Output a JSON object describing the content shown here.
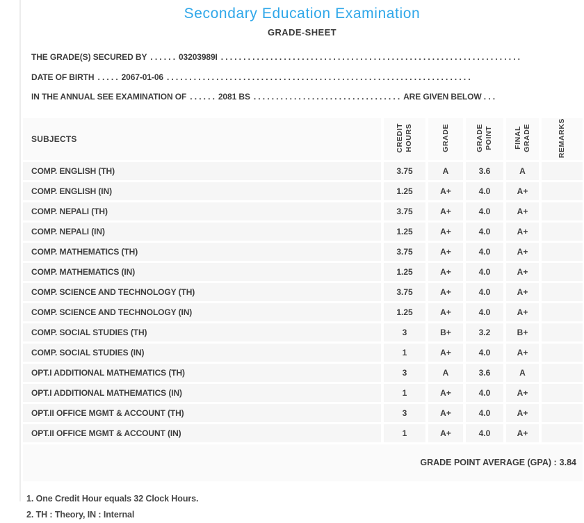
{
  "header": {
    "title": "Secondary Education Examination",
    "subtitle": "GRADE-SHEET"
  },
  "info_lines": [
    {
      "label": "THE GRADE(S) SECURED BY",
      "dots_before": ". . . . . .",
      "value": "03203989I",
      "dots_after": ". . . . . . . . . . . . . . . . . . . . . . . . . . . . . . . . . . . . . . . . . . . . . . . . . . . . . . . . . . . . . . . . . . . .",
      "suffix": ""
    },
    {
      "label": "DATE OF BIRTH",
      "dots_before": ". . . . .",
      "value": "2067-01-06",
      "dots_after": ". . . . . . . . . . . . . . . . . . . . . . . . . . . . . . . . . . . . . . . . . . . . . . . . . . . . . . . . . . . . . . . . . . . .",
      "suffix": ""
    },
    {
      "label": "IN THE ANNUAL SEE EXAMINATION OF",
      "dots_before": ". . . . . .",
      "value": "2081 BS",
      "dots_after": ". . . . . . . . . . . . . . . . . . . . . . . . . . . . . . . . .",
      "suffix": "ARE GIVEN BELOW . . ."
    }
  ],
  "table": {
    "columns": {
      "subjects": "SUBJECTS",
      "credit_hours": "CREDIT\nHOURS",
      "grade": "GRADE",
      "grade_point": "GRADE\nPOINT",
      "final_grade": "FINAL\nGRADE",
      "remarks": "REMARKS"
    },
    "rows": [
      {
        "subject": "COMP. ENGLISH (TH)",
        "credit_hours": "3.75",
        "grade": "A",
        "grade_point": "3.6",
        "final_grade": "A",
        "remarks": ""
      },
      {
        "subject": "COMP. ENGLISH (IN)",
        "credit_hours": "1.25",
        "grade": "A+",
        "grade_point": "4.0",
        "final_grade": "A+",
        "remarks": ""
      },
      {
        "subject": "COMP. NEPALI (TH)",
        "credit_hours": "3.75",
        "grade": "A+",
        "grade_point": "4.0",
        "final_grade": "A+",
        "remarks": ""
      },
      {
        "subject": "COMP. NEPALI (IN)",
        "credit_hours": "1.25",
        "grade": "A+",
        "grade_point": "4.0",
        "final_grade": "A+",
        "remarks": ""
      },
      {
        "subject": "COMP. MATHEMATICS (TH)",
        "credit_hours": "3.75",
        "grade": "A+",
        "grade_point": "4.0",
        "final_grade": "A+",
        "remarks": ""
      },
      {
        "subject": "COMP. MATHEMATICS (IN)",
        "credit_hours": "1.25",
        "grade": "A+",
        "grade_point": "4.0",
        "final_grade": "A+",
        "remarks": ""
      },
      {
        "subject": "COMP. SCIENCE AND TECHNOLOGY (TH)",
        "credit_hours": "3.75",
        "grade": "A+",
        "grade_point": "4.0",
        "final_grade": "A+",
        "remarks": ""
      },
      {
        "subject": "COMP. SCIENCE AND TECHNOLOGY (IN)",
        "credit_hours": "1.25",
        "grade": "A+",
        "grade_point": "4.0",
        "final_grade": "A+",
        "remarks": ""
      },
      {
        "subject": "COMP. SOCIAL STUDIES (TH)",
        "credit_hours": "3",
        "grade": "B+",
        "grade_point": "3.2",
        "final_grade": "B+",
        "remarks": ""
      },
      {
        "subject": "COMP. SOCIAL STUDIES (IN)",
        "credit_hours": "1",
        "grade": "A+",
        "grade_point": "4.0",
        "final_grade": "A+",
        "remarks": ""
      },
      {
        "subject": "OPT.I ADDITIONAL MATHEMATICS (TH)",
        "credit_hours": "3",
        "grade": "A",
        "grade_point": "3.6",
        "final_grade": "A",
        "remarks": ""
      },
      {
        "subject": "OPT.I ADDITIONAL MATHEMATICS (IN)",
        "credit_hours": "1",
        "grade": "A+",
        "grade_point": "4.0",
        "final_grade": "A+",
        "remarks": ""
      },
      {
        "subject": "OPT.II OFFICE MGMT & ACCOUNT (TH)",
        "credit_hours": "3",
        "grade": "A+",
        "grade_point": "4.0",
        "final_grade": "A+",
        "remarks": ""
      },
      {
        "subject": "OPT.II OFFICE MGMT & ACCOUNT (IN)",
        "credit_hours": "1",
        "grade": "A+",
        "grade_point": "4.0",
        "final_grade": "A+",
        "remarks": ""
      }
    ]
  },
  "summary": {
    "gpa_label": "GRADE POINT AVERAGE (GPA) :",
    "gpa_value": "3.84"
  },
  "footnotes": [
    "1. One Credit Hour equals 32 Clock Hours.",
    "2. TH : Theory, IN : Internal"
  ],
  "colors": {
    "title_blue": "#2fa7e9",
    "text_dark": "#3d3d3d",
    "row_bg": "#f6f6f6",
    "band_bg": "#fafafa",
    "left_rule": "#ececec"
  }
}
